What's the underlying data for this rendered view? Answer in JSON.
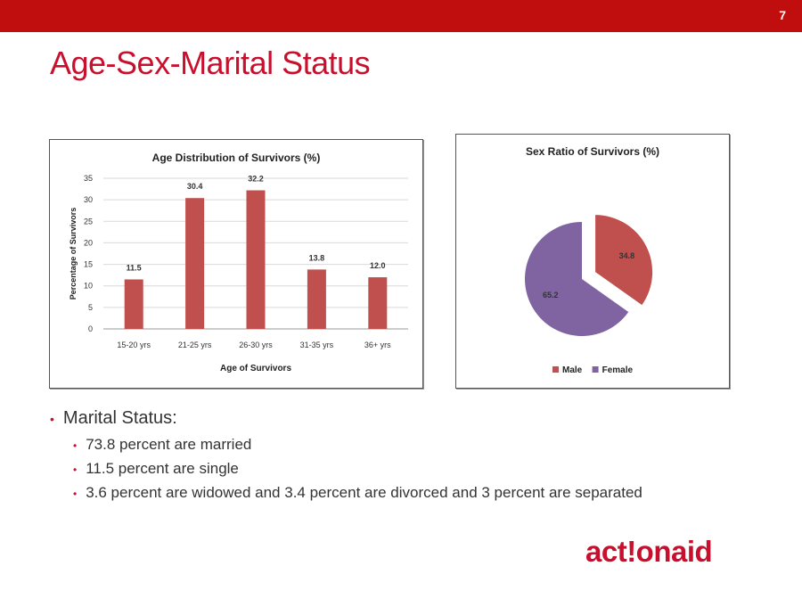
{
  "slide": {
    "number": "7",
    "title": "Age-Sex-Marital Status"
  },
  "chart_data": [
    {
      "type": "bar",
      "title": "Age Distribution of Survivors (%)",
      "xlabel": "Age of Survivors",
      "ylabel": "Percentage of Survivors",
      "categories": [
        "15-20 yrs",
        "21-25 yrs",
        "26-30 yrs",
        "31-35 yrs",
        "36+ yrs"
      ],
      "values": [
        11.5,
        30.4,
        32.2,
        13.8,
        12.0
      ],
      "data_labels": [
        "11.5",
        "30.4",
        "32.2",
        "13.8",
        "12.0"
      ],
      "ylim": [
        0,
        35
      ],
      "yticks": [
        0,
        5,
        10,
        15,
        20,
        25,
        30,
        35
      ],
      "grid": true,
      "bar_color": "#c0504d"
    },
    {
      "type": "pie",
      "title": "Sex Ratio of Survivors  (%)",
      "series": [
        {
          "name": "Male",
          "value": 34.8,
          "label": "34.8",
          "color": "#c0504d",
          "exploded": true
        },
        {
          "name": "Female",
          "value": 65.2,
          "label": "65.2",
          "color": "#8064a2",
          "exploded": false
        }
      ],
      "legend_position": "bottom"
    }
  ],
  "bullets": {
    "main": "Marital Status:",
    "items": [
      "73.8 percent are married",
      "11.5 percent are single",
      "3.6 percent are widowed and 3.4 percent are divorced and 3 percent are separated"
    ]
  },
  "logo": {
    "text": "act!onaid"
  },
  "colors": {
    "brand_red": "#c8102e",
    "top_bar": "#c00d0d"
  }
}
